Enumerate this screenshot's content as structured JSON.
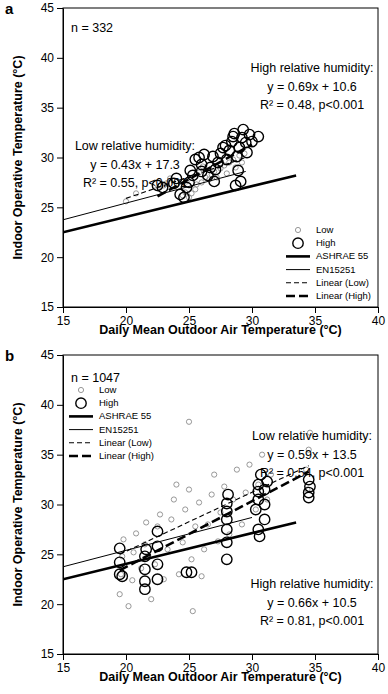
{
  "chart_data": [
    {
      "type": "scatter",
      "title": "a",
      "x_label": "Daily Mean Outdoor Air Temperature (°C)",
      "y_label": "Indoor Operative Temperature (°C)",
      "xlim": [
        15,
        40
      ],
      "ylim": [
        15,
        45
      ],
      "xticks": [
        15,
        20,
        25,
        30,
        35,
        40
      ],
      "yticks": [
        15,
        20,
        25,
        30,
        35,
        40,
        45
      ],
      "grid": false,
      "legend": "lower right",
      "annotations": [
        {
          "lines": [
            "n = 332"
          ]
        },
        {
          "lines": [
            "High relative humidity:",
            "y = 0.69x + 10.6",
            "R² = 0.48, p<0.001"
          ]
        },
        {
          "lines": [
            "Low relative humidity:",
            "y = 0.43x + 17.3",
            "R² = 0.55, p<0.001"
          ]
        }
      ],
      "series": [
        {
          "name": "Low",
          "type": "scatter",
          "color": "#8c8c8c",
          "marker": "small-circle",
          "x": [
            20,
            20.8,
            22.5,
            23,
            23.2,
            24.5,
            24.7,
            25,
            25.2,
            25.5,
            25.6,
            26,
            26.3,
            26.6,
            26.8,
            27,
            27.2,
            27.5,
            27.8,
            28,
            28.2,
            28.5,
            28.7,
            29,
            29.2,
            29.4,
            25.8,
            26.1,
            24.8,
            23.5
          ],
          "values": [
            25.6,
            26.4,
            26.9,
            27.2,
            27.4,
            26.2,
            26.5,
            26.0,
            26.4,
            26.8,
            27.3,
            27.5,
            28.0,
            27.8,
            28.3,
            28.6,
            28.0,
            28.9,
            29.2,
            28.4,
            29.5,
            29.8,
            29.0,
            30.2,
            29.5,
            30.4,
            28.5,
            29.1,
            27.6,
            27.9
          ]
        },
        {
          "name": "High",
          "type": "scatter",
          "color": "#000000",
          "marker": "large-circle",
          "x": [
            22.5,
            22.9,
            23.8,
            24,
            24.3,
            24.6,
            24.8,
            25,
            25.1,
            25.3,
            25.5,
            25.8,
            26,
            26,
            26.2,
            26.5,
            26.7,
            26.9,
            27,
            27.1,
            27.3,
            27.5,
            27.7,
            27.9,
            28,
            28.2,
            28.4,
            28.5,
            28.6,
            28.8,
            28.9,
            29,
            29.2,
            29.3,
            29.5,
            29.6,
            29.8,
            30,
            30.5,
            29.1,
            28.7
          ],
          "values": [
            27.2,
            27.0,
            27.4,
            27.9,
            26.3,
            26.0,
            27.0,
            27.5,
            28.7,
            28.2,
            29.8,
            30.0,
            29.3,
            28.6,
            30.3,
            28.2,
            29.0,
            30.1,
            27.6,
            28.8,
            29.5,
            30.4,
            31.0,
            31.2,
            29.8,
            30.7,
            31.6,
            32.1,
            32.4,
            30.1,
            28.7,
            31.0,
            32.0,
            32.8,
            31.5,
            30.5,
            32.3,
            31.6,
            32.1,
            27.6,
            27.2
          ]
        },
        {
          "name": "ASHRAE 55",
          "type": "line",
          "color": "#000000",
          "line_style": "bold",
          "x": [
            15,
            33.5
          ],
          "values": [
            22.5,
            28.2
          ]
        },
        {
          "name": "EN15251",
          "type": "line",
          "color": "#000000",
          "line_style": "thin",
          "x": [
            15,
            29.5
          ],
          "values": [
            23.75,
            28.6
          ]
        },
        {
          "name": "Linear (Low)",
          "type": "line",
          "color": "#000000",
          "line_style": "dashed",
          "x": [
            20,
            29.5
          ],
          "values": [
            25.9,
            30.0
          ]
        },
        {
          "name": "Linear (High)",
          "type": "line",
          "color": "#000000",
          "line_style": "bold-dashed",
          "x": [
            22.5,
            30
          ],
          "values": [
            26.1,
            31.3
          ]
        }
      ]
    },
    {
      "type": "scatter",
      "title": "b",
      "x_label": "Daily Mean Outdoor Air Temperature (°C)",
      "y_label": "Indoor Operative Temperature (°C)",
      "xlim": [
        15,
        40
      ],
      "ylim": [
        15,
        45
      ],
      "xticks": [
        15,
        20,
        25,
        30,
        35,
        40
      ],
      "yticks": [
        15,
        20,
        25,
        30,
        35,
        40,
        45
      ],
      "grid": false,
      "legend": "upper left",
      "annotations": [
        {
          "lines": [
            "n = 1047"
          ]
        },
        {
          "lines": [
            "Low relative humidity:",
            "y = 0.59x + 13.5",
            "R² = 0.54, p<0.001"
          ]
        },
        {
          "lines": [
            "High relative humidity:",
            "y = 0.66x + 10.5",
            "R² = 0.81, p<0.001"
          ]
        }
      ],
      "series": [
        {
          "name": "Low",
          "type": "scatter",
          "color": "#8c8c8c",
          "marker": "small-circle",
          "x": [
            19.5,
            19.6,
            19.7,
            19.8,
            20.2,
            20.5,
            20.6,
            20.8,
            21.2,
            21.5,
            21.6,
            22,
            22.3,
            22.5,
            22.7,
            23,
            23.3,
            23.6,
            23.8,
            24.2,
            24.5,
            24.7,
            25,
            25,
            25.2,
            25.3,
            25.5,
            25.8,
            26.2,
            26.5,
            26.8,
            27,
            27.3,
            27.5,
            27.8,
            28.2,
            28.5,
            28.8,
            29.2,
            29.5,
            29.8,
            30.3,
            30.5,
            30.8,
            31.2,
            31.5,
            34.3,
            34.5,
            34.6,
            34.4,
            26,
            24
          ],
          "values": [
            21.0,
            23.0,
            24.8,
            26.5,
            19.8,
            22.4,
            25.2,
            27.1,
            23.6,
            26.0,
            28.2,
            20.5,
            24.0,
            27.8,
            29.0,
            22.5,
            25.5,
            28.5,
            30.5,
            23.0,
            26.2,
            29.5,
            31.5,
            38.3,
            24.5,
            19.3,
            27.8,
            30.2,
            25.5,
            28.0,
            31.0,
            33.0,
            26.3,
            29.2,
            31.8,
            27.0,
            30.5,
            33.5,
            28.0,
            31.2,
            34.0,
            29.5,
            32.0,
            35.0,
            30.5,
            33.0,
            33.5,
            35.5,
            37.2,
            31.5,
            22.8,
            32.0
          ]
        },
        {
          "name": "High",
          "type": "scatter",
          "color": "#000000",
          "marker": "large-circle",
          "x": [
            19.5,
            19.5,
            19.5,
            19.7,
            21.5,
            21.5,
            21.5,
            21.5,
            21.6,
            22.5,
            22.5,
            22.5,
            22.5,
            24.8,
            25.2,
            28,
            28,
            28,
            28,
            28,
            28,
            28.1,
            30.3,
            30.5,
            30.5,
            30.5,
            30.7,
            30.6,
            30.5,
            31,
            31,
            31,
            31.2,
            34.5,
            34.5,
            34.5,
            34.6
          ],
          "values": [
            23.0,
            24.2,
            25.6,
            22.8,
            21.5,
            22.3,
            23.5,
            24.8,
            25.5,
            22.5,
            24.0,
            25.8,
            27.3,
            23.2,
            23.2,
            24.5,
            26.2,
            27.5,
            28.5,
            29.3,
            30.1,
            31.0,
            29.5,
            30.5,
            31.3,
            32.0,
            33.0,
            26.8,
            27.5,
            28.5,
            30.0,
            31.5,
            32.3,
            30.7,
            31.2,
            32.5,
            31.8
          ]
        },
        {
          "name": "ASHRAE 55",
          "type": "line",
          "color": "#000000",
          "line_style": "bold",
          "x": [
            15,
            33.5
          ],
          "values": [
            22.5,
            28.2
          ]
        },
        {
          "name": "EN15251",
          "type": "line",
          "color": "#000000",
          "line_style": "thin",
          "x": [
            15,
            30
          ],
          "values": [
            23.75,
            28.7
          ]
        },
        {
          "name": "Linear (Low)",
          "type": "line",
          "color": "#000000",
          "line_style": "dashed",
          "x": [
            19.5,
            34.5
          ],
          "values": [
            25.0,
            33.9
          ]
        },
        {
          "name": "Linear (High)",
          "type": "line",
          "color": "#000000",
          "line_style": "bold-dashed",
          "x": [
            19.5,
            34.5
          ],
          "values": [
            23.4,
            33.3
          ]
        }
      ]
    }
  ]
}
